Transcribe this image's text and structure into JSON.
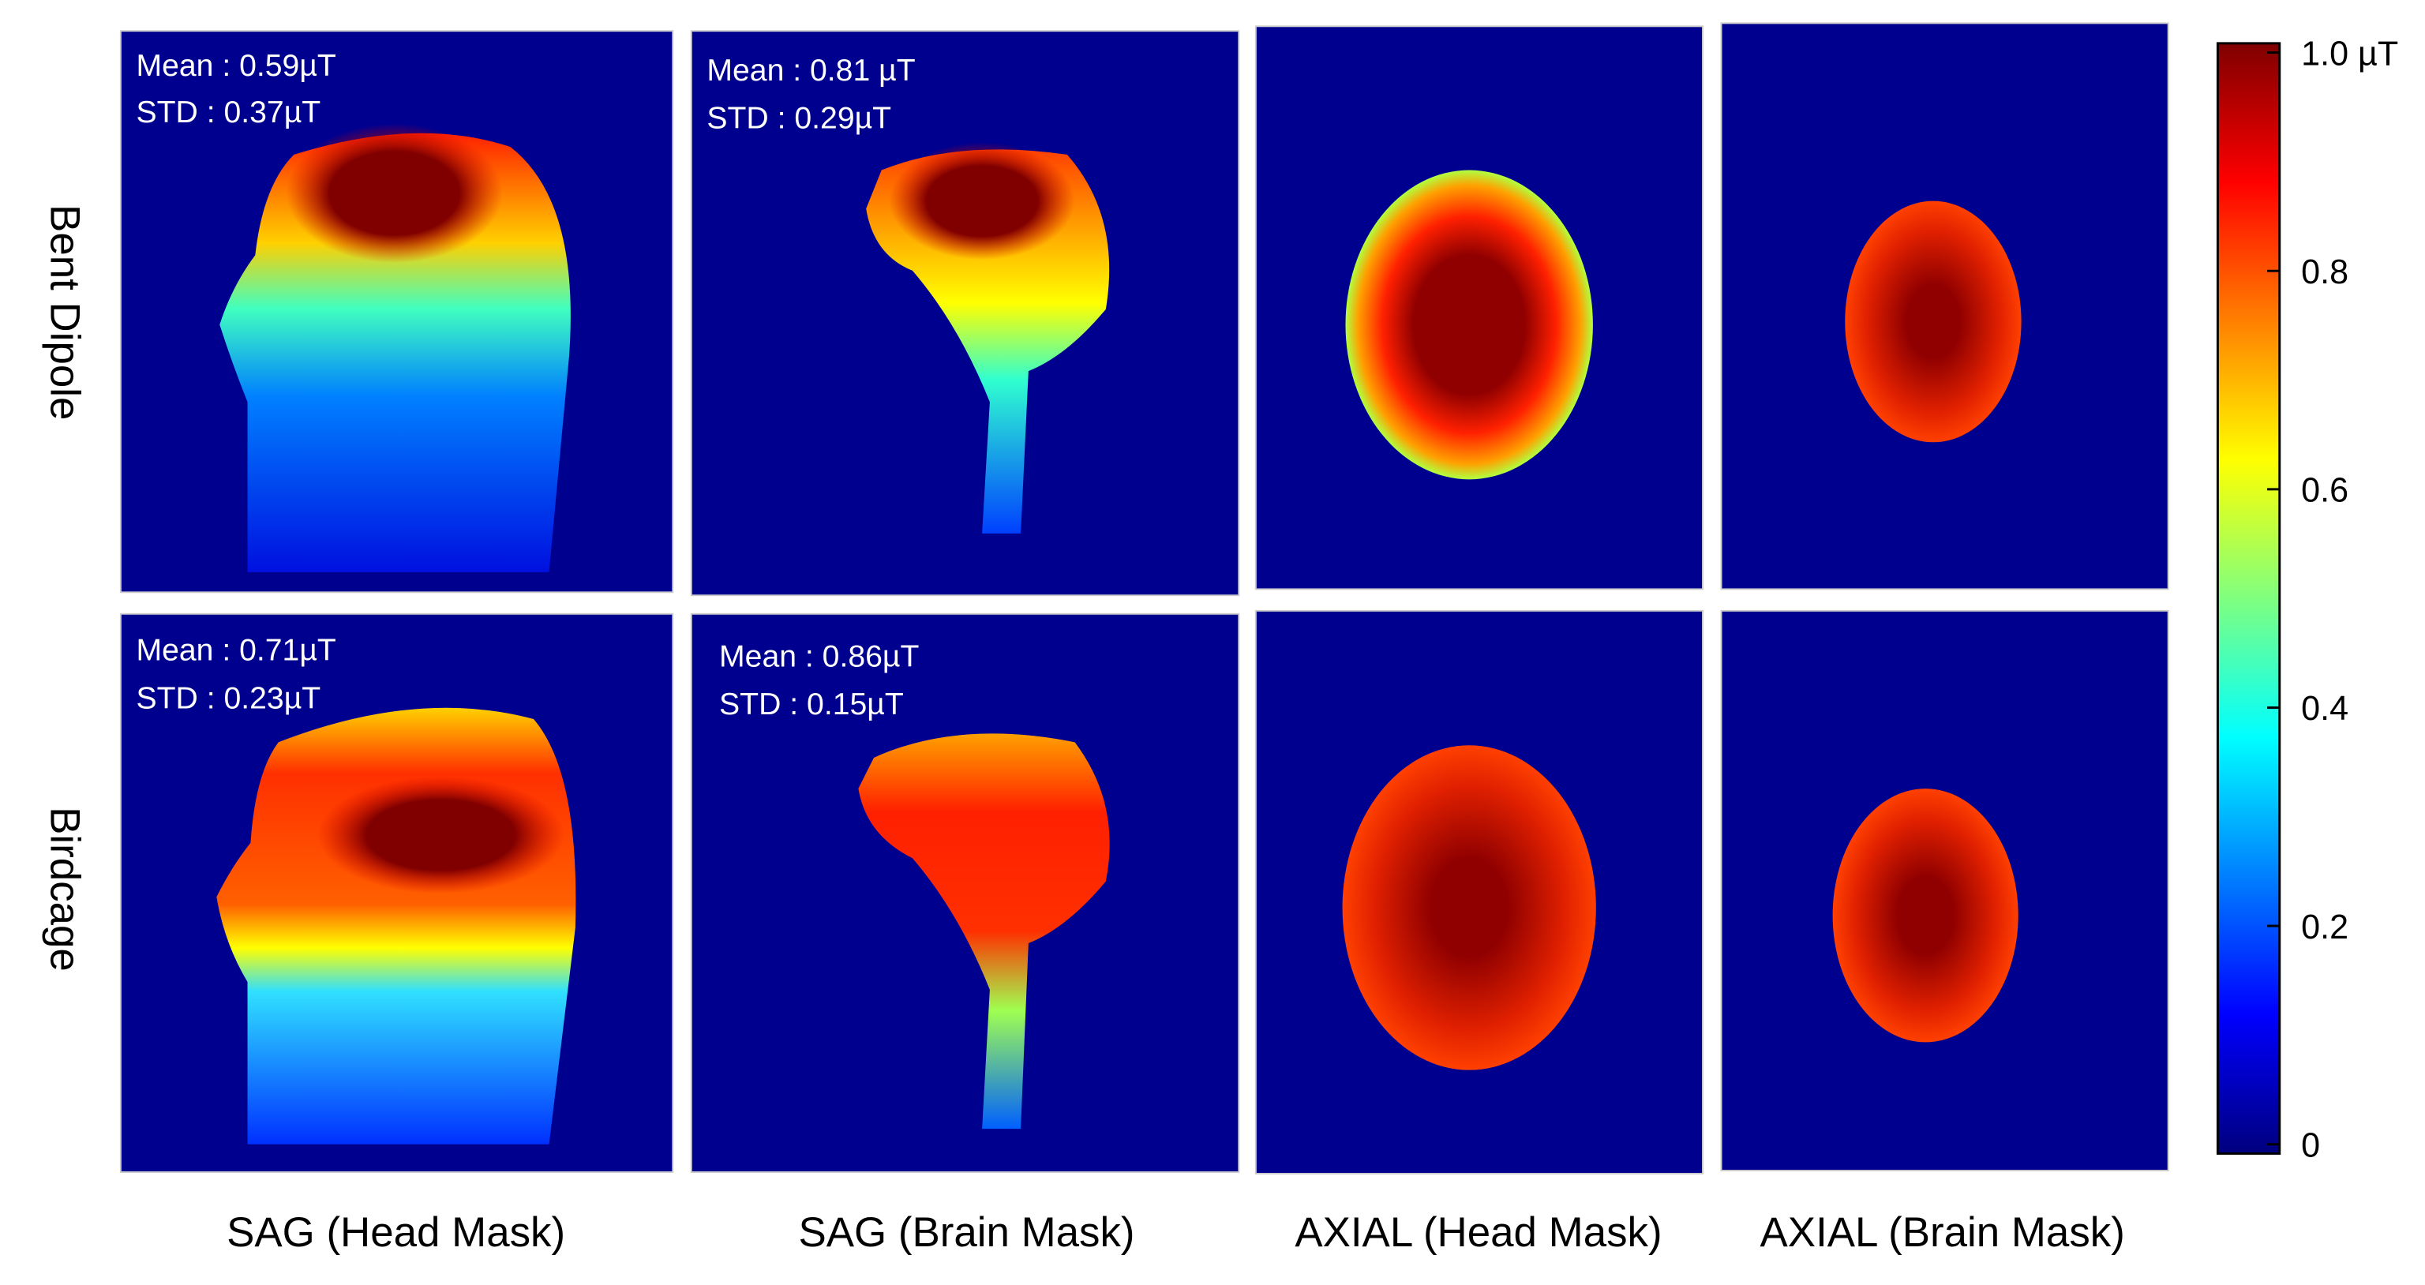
{
  "rows": [
    {
      "label": "Bent Dipole",
      "panels": [
        {
          "mean": "Mean : 0.59µT",
          "std": "STD : 0.37µT"
        },
        {
          "mean": "Mean : 0.81 µT",
          "std": "STD : 0.29µT"
        }
      ]
    },
    {
      "label": "Birdcage",
      "panels": [
        {
          "mean": "Mean : 0.71µT",
          "std": "STD : 0.23µT"
        },
        {
          "mean": "Mean : 0.86µT",
          "std": "STD : 0.15µT"
        }
      ]
    }
  ],
  "columns": [
    "SAG (Head Mask)",
    "SAG (Brain Mask)",
    "AXIAL (Head Mask)",
    "AXIAL (Brain Mask)"
  ],
  "colorbar": {
    "range": [
      0,
      1
    ],
    "ticks": [
      {
        "value": 1.0,
        "label": "1.0 µT"
      },
      0.8,
      0.6,
      0.4,
      0.2,
      0
    ]
  }
}
